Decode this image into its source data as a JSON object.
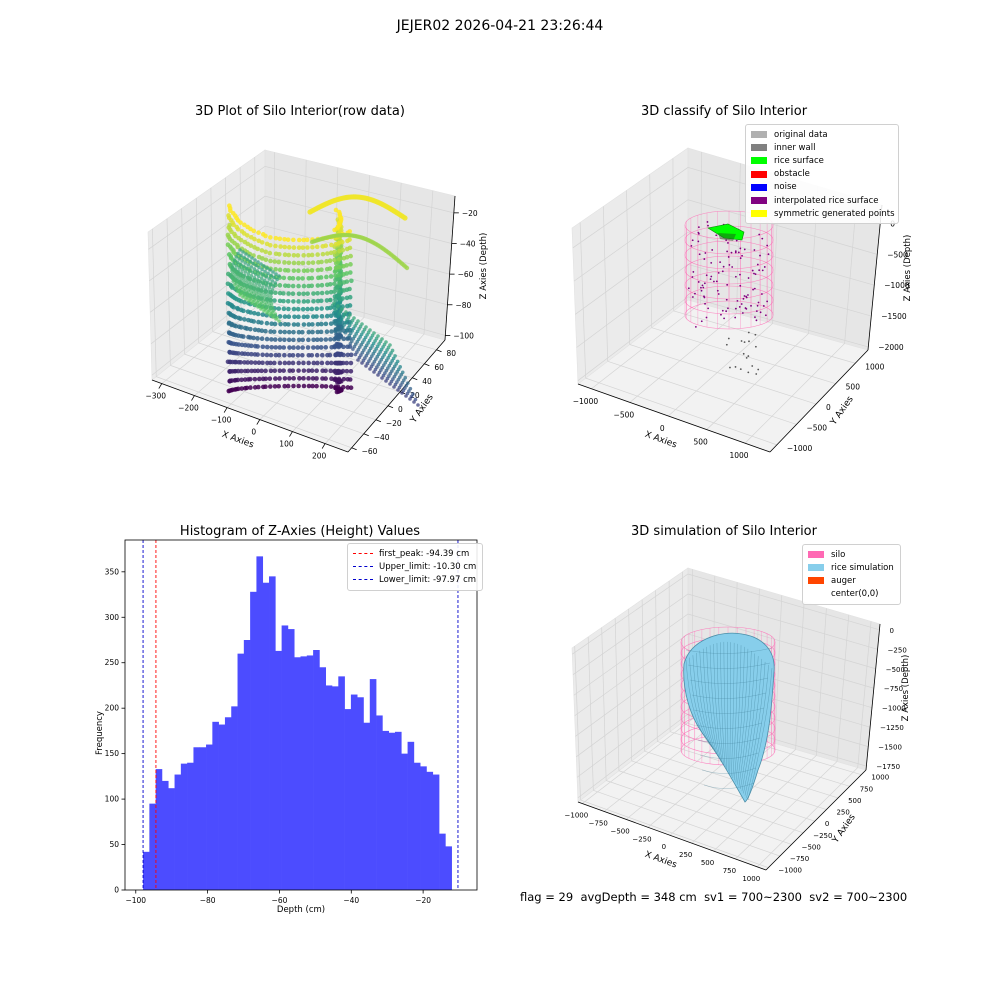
{
  "figure": {
    "suptitle": "JEJER02 2026-04-21 23:26:44",
    "footer": {
      "flag": "flag = 29",
      "avg_depth": "avgDepth = 348 cm",
      "sv1": "sv1 = 700~2300",
      "sv2": "sv2 = 700~2300"
    }
  },
  "colors": {
    "histogram_bar": "#4c4cff",
    "first_peak": "#ff0000",
    "limit_line": "#0000cc",
    "silo": "#ff69b4",
    "rice_simulation": "#87ceeb",
    "auger": "#ff4500",
    "original_data": "#b0b0b0",
    "inner_wall": "#808080",
    "rice_surface": "#00ff00",
    "obstacle": "#ff0000",
    "noise": "#0000ff",
    "interpolated_rice_surface": "#800080",
    "symmetric_generated_points": "#ffff00"
  },
  "chart_data": [
    {
      "type": "scatter",
      "title": "3D Plot of Silo Interior(row data)",
      "xlabel": "X Axies",
      "ylabel": "Y Axies",
      "zlabel": "Z Axies (Depth)",
      "x_ticks": [
        "−300",
        "−200",
        "−100",
        "0",
        "100",
        "200"
      ],
      "y_ticks": [
        "−60",
        "−40",
        "−20",
        "0",
        "20",
        "40",
        "60",
        "80"
      ],
      "z_ticks": [
        "−100",
        "−80",
        "−60",
        "−40",
        "−20"
      ],
      "xlim": [
        -300,
        200
      ],
      "ylim": [
        -60,
        80
      ],
      "zlim": [
        -100,
        -10
      ],
      "colormap": "viridis"
    },
    {
      "type": "scatter",
      "title": "3D classify of Silo Interior",
      "xlabel": "X Axies",
      "ylabel": "Y Axies",
      "zlabel": "Z Axies (Depth)",
      "x_ticks": [
        "−1000",
        "−500",
        "0",
        "500",
        "1000"
      ],
      "y_ticks": [
        "−1000",
        "−500",
        "0",
        "500",
        "1000"
      ],
      "z_ticks": [
        "−2000",
        "−1500",
        "−1000",
        "−500",
        "0"
      ],
      "legend": [
        "original data",
        "inner wall",
        "rice surface",
        "obstacle",
        "noise",
        "interpolated rice surface",
        "symmetric generated points"
      ],
      "legend_placement": "top-right"
    },
    {
      "type": "bar",
      "title": "Histogram of Z-Axies (Height) Values",
      "xlabel": "Depth (cm)",
      "ylabel": "Frequency",
      "xlim": [
        -103,
        -5
      ],
      "ylim": [
        0,
        385
      ],
      "x_ticks": [
        -100,
        -80,
        -60,
        -40,
        -20
      ],
      "y_ticks": [
        0,
        50,
        100,
        150,
        200,
        250,
        300,
        350
      ],
      "bin_start": -97.97,
      "bin_width": 1.7534,
      "values": [
        42,
        95,
        133,
        120,
        112,
        127,
        139,
        140,
        157,
        157,
        160,
        185,
        182,
        190,
        202,
        260,
        275,
        328,
        367,
        338,
        345,
        263,
        291,
        287,
        256,
        257,
        258,
        264,
        245,
        225,
        224,
        235,
        199,
        215,
        212,
        184,
        232,
        192,
        175,
        173,
        174,
        150,
        163,
        140,
        136,
        130,
        127,
        62,
        48
      ],
      "vlines": [
        {
          "label": "first_peak: -94.39 cm",
          "x": -94.39,
          "style": "dashed",
          "color": "#ff0000"
        },
        {
          "label": "Upper_limit: -10.30 cm",
          "x": -10.3,
          "style": "dashed",
          "color": "#0000cc"
        },
        {
          "label": "Lower_limit: -97.97 cm",
          "x": -97.97,
          "style": "dashed",
          "color": "#0000cc"
        }
      ],
      "legend_placement": "top-right"
    },
    {
      "type": "area",
      "title": "3D simulation of Silo Interior",
      "xlabel": "X Axies",
      "ylabel": "Y Axies",
      "zlabel": "Z Axies (Depth)",
      "x_ticks": [
        "−1000",
        "−750",
        "−500",
        "−250",
        "0",
        "250",
        "500",
        "750",
        "1000"
      ],
      "y_ticks": [
        "−1000",
        "−750",
        "−500",
        "−250",
        "0",
        "250",
        "500",
        "750",
        "1000"
      ],
      "z_ticks": [
        "−1750",
        "−1500",
        "−1250",
        "−1000",
        "−750",
        "−500",
        "−250",
        "0"
      ],
      "legend": [
        "silo",
        "rice simulation",
        "auger",
        "center(0,0)"
      ],
      "legend_placement": "top-right"
    }
  ]
}
